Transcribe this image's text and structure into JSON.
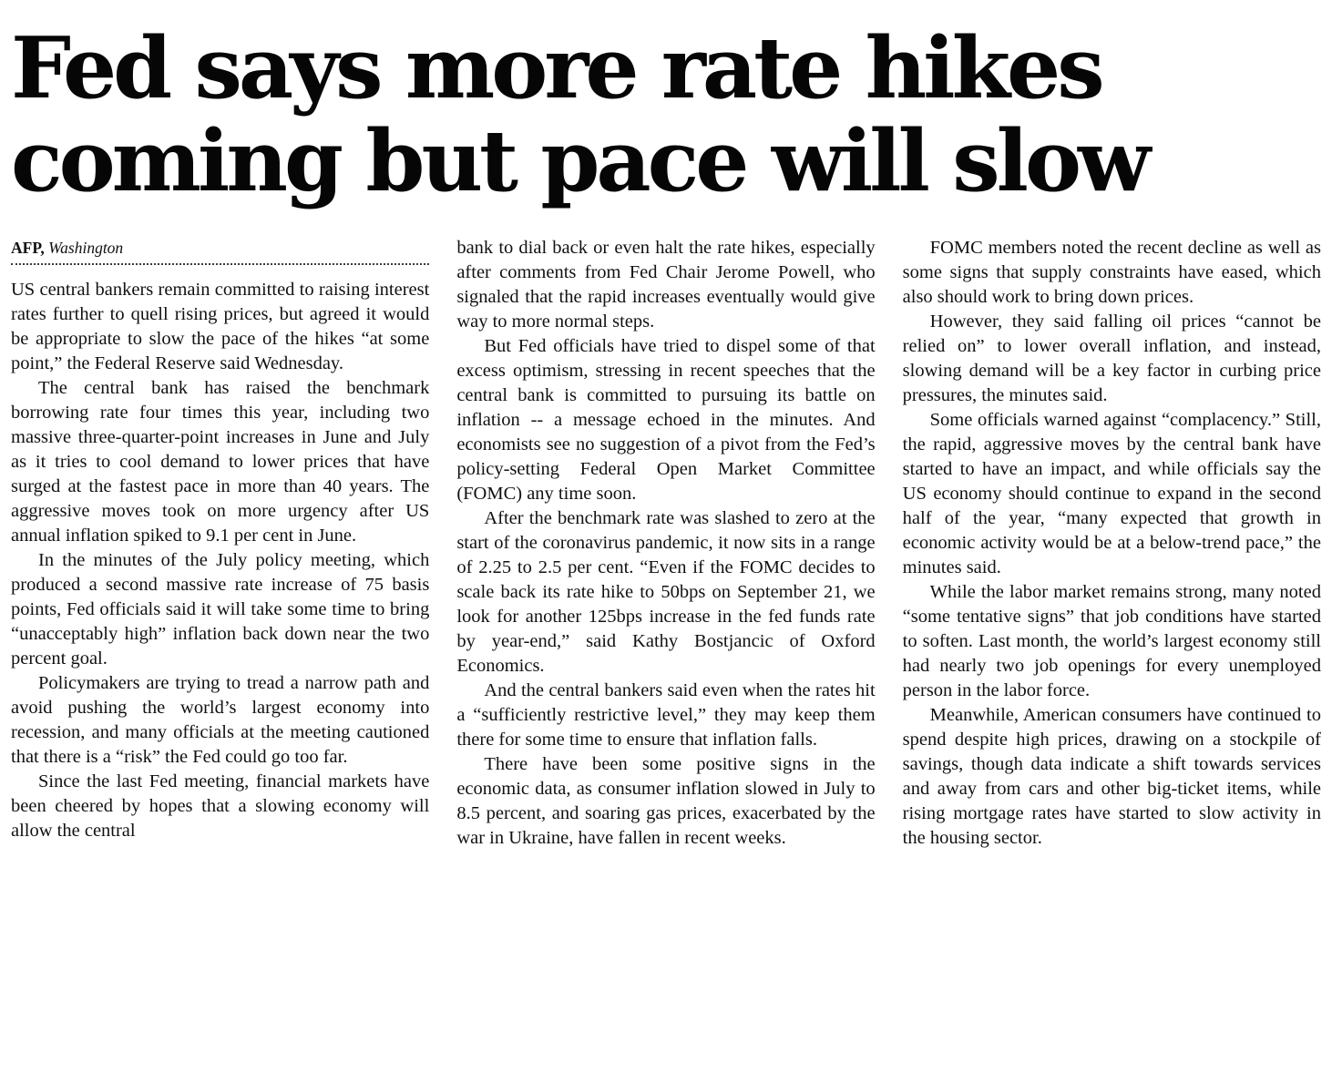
{
  "colors": {
    "text": "#111111",
    "headline": "#060606",
    "background": "#ffffff"
  },
  "article": {
    "headline": "Fed says more rate hikes\ncoming but pace will slow",
    "byline": {
      "agency": "AFP,",
      "location": "Washington"
    },
    "columns": [
      {
        "paragraphs": [
          "US central bankers remain committed to raising interest rates further to quell rising prices, but agreed it would be appropriate to slow the pace of the hikes “at some point,” the Federal Reserve said Wednesday.",
          "The central bank has raised the benchmark borrowing rate four times this year, including two massive three-quarter-point increases in June and July as it tries to cool demand to lower prices that have surged at the fastest pace in more than 40 years. The aggressive moves took on more urgency after US annual inflation spiked to 9.1 per cent in June.",
          "In the minutes of the July policy meeting, which produced a second massive rate increase of 75 basis points, Fed officials said it will take some time to bring “unacceptably high” inflation back down near the two percent goal.",
          "Policymakers are trying to tread a narrow path and avoid pushing the world’s largest economy into recession, and many officials at the meeting cautioned that there is a “risk” the Fed could go too far.",
          "Since the last Fed meeting, financial markets have been cheered by hopes that a slowing economy will allow the central"
        ]
      },
      {
        "paragraphs": [
          "bank to dial back or even halt the rate hikes, especially after comments from Fed Chair Jerome Powell, who signaled that the rapid increases eventually would give way to more normal steps.",
          "But Fed officials have tried to dispel some of that excess optimism, stressing in recent speeches that the central bank is committed to pursuing its battle on inflation -- a message echoed in the minutes. And economists see no suggestion of a pivot from the Fed’s policy-setting Federal Open Market Committee (FOMC) any time soon.",
          "After the benchmark rate was slashed to zero at the start of the coronavirus pandemic, it now sits in a range of 2.25 to 2.5 per cent. “Even if the FOMC decides to scale back its rate hike to 50bps on September 21, we look for another 125bps increase in the fed funds rate by year-end,” said Kathy Bostjancic of Oxford Economics.",
          "And the central bankers said even when the rates hit a “sufficiently restrictive level,” they may keep them there for some time to ensure that inflation falls.",
          "There have been some positive signs in the economic data, as consumer inflation slowed in July to 8.5 percent, and soaring gas prices, exacerbated by the war in Ukraine, have fallen in recent weeks."
        ]
      },
      {
        "paragraphs": [
          "FOMC members noted the recent decline as well as some signs that supply constraints have eased, which also should work to bring down prices.",
          "However, they said falling oil prices “cannot be relied on” to lower overall inflation, and instead, slowing demand will be a key factor in curbing price pressures, the minutes said.",
          "Some officials warned against “complacency.” Still, the rapid, aggressive moves by the central bank have started to have an impact, and while officials say the US economy should continue to expand in the second half of the year,  “many expected that growth in economic activity would be at a below-trend pace,” the minutes said.",
          "While the labor market remains strong, many noted  “some tentative signs” that job conditions have started to soften. Last month, the world’s largest economy still had nearly two job openings for every unemployed person in the labor force.",
          "Meanwhile, American consumers have continued to spend despite high prices, drawing on a stockpile of savings, though data indicate a shift towards services and away from cars and other big-ticket items, while rising mortgage rates have started to slow activity in the housing sector."
        ]
      }
    ]
  }
}
